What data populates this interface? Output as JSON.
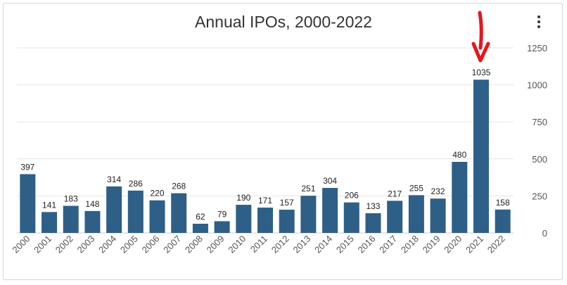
{
  "chart_data": {
    "type": "bar",
    "title": "Annual IPOs, 2000-2022",
    "xlabel": "",
    "ylabel": "",
    "categories": [
      "2000",
      "2001",
      "2002",
      "2003",
      "2004",
      "2005",
      "2006",
      "2007",
      "2008",
      "2009",
      "2010",
      "2011",
      "2012",
      "2013",
      "2014",
      "2015",
      "2016",
      "2017",
      "2018",
      "2019",
      "2020",
      "2021",
      "2022"
    ],
    "values": [
      397,
      141,
      183,
      148,
      314,
      286,
      220,
      268,
      62,
      79,
      190,
      171,
      157,
      251,
      304,
      206,
      133,
      217,
      255,
      232,
      480,
      1035,
      158
    ],
    "ylim": [
      0,
      1250
    ],
    "yticks": [
      "0",
      "250",
      "500",
      "750",
      "1000",
      "1250"
    ],
    "y_axis_side": "right",
    "grid": true,
    "legend": "none",
    "bar_color": "#2e5f87",
    "annotation": {
      "type": "arrow",
      "target": "2021",
      "color": "#e8141c"
    }
  },
  "menu_icon": "kebab-menu-icon"
}
